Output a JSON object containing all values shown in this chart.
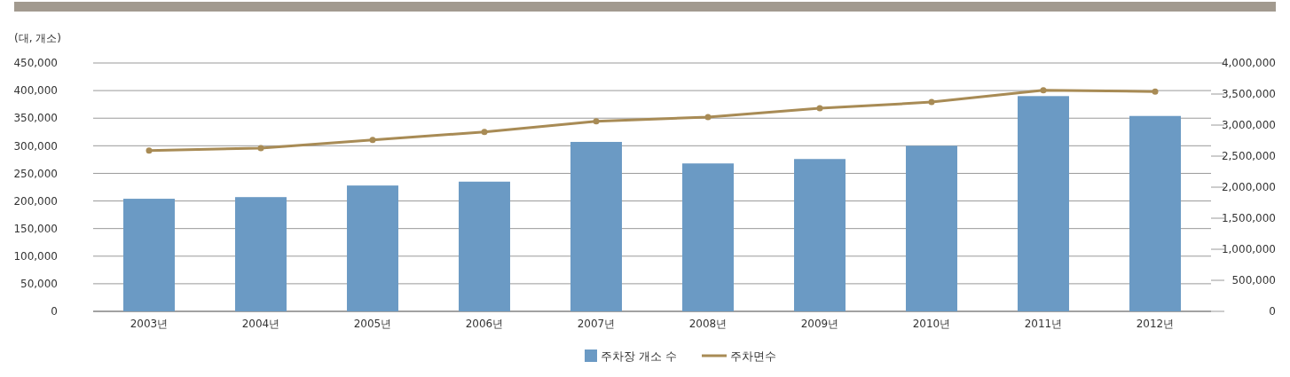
{
  "chart_data": {
    "type": "bar",
    "ylabel": "(대, 개소)",
    "categories": [
      "2003년",
      "2004년",
      "2005년",
      "2006년",
      "2007년",
      "2008년",
      "2009년",
      "2010년",
      "2011년",
      "2012년"
    ],
    "series": [
      {
        "name": "주차장 개소 수",
        "color": "#6b9ac4",
        "values": [
          204000,
          207000,
          228000,
          235000,
          307000,
          268000,
          276000,
          300000,
          390000,
          354000
        ]
      },
      {
        "name": "주차면수",
        "type": "line",
        "axis": "y2",
        "color": "#a88b55",
        "marker": "circle",
        "values": [
          2590000,
          2630000,
          2760000,
          2890000,
          3060000,
          3130000,
          3270000,
          3370000,
          3560000,
          3540000
        ]
      }
    ],
    "ylim": [
      0,
      450000
    ],
    "yticks": [
      {
        "value": 0,
        "label": "0"
      },
      {
        "value": 50000,
        "label": "50,000"
      },
      {
        "value": 100000,
        "label": "100,000"
      },
      {
        "value": 150000,
        "label": "150,000"
      },
      {
        "value": 200000,
        "label": "200,000"
      },
      {
        "value": 250000,
        "label": "250,000"
      },
      {
        "value": 300000,
        "label": "300,000"
      },
      {
        "value": 350000,
        "label": "350,000"
      },
      {
        "value": 400000,
        "label": "400,000"
      },
      {
        "value": 450000,
        "label": "450,000"
      }
    ],
    "y2lim": [
      0,
      4000000
    ],
    "y2ticks": [
      {
        "value": 0,
        "label": "0"
      },
      {
        "value": 500000,
        "label": "500,000"
      },
      {
        "value": 1000000,
        "label": "1,000,000"
      },
      {
        "value": 1500000,
        "label": "1,500,000"
      },
      {
        "value": 2000000,
        "label": "2,000,000"
      },
      {
        "value": 2500000,
        "label": "2,500,000"
      },
      {
        "value": 3000000,
        "label": "3,000,000"
      },
      {
        "value": 3500000,
        "label": "3,500,000"
      },
      {
        "value": 4000000,
        "label": "4,000,000"
      }
    ],
    "grid": "y",
    "legend": "bottom"
  }
}
